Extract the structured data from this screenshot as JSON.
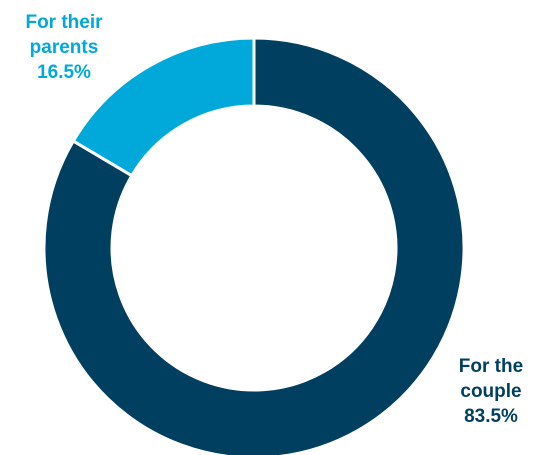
{
  "chart_data": {
    "type": "pie",
    "donut": true,
    "slices": [
      {
        "name_line1": "For their",
        "name_line2": "parents",
        "value": 16.5,
        "value_label": "16.5%",
        "color": "#00A9DA"
      },
      {
        "name_line1": "For the",
        "name_line2": "couple",
        "value": 83.5,
        "value_label": "83.5%",
        "color": "#003F5F"
      }
    ],
    "title": "",
    "legend": "none",
    "grid": false
  }
}
